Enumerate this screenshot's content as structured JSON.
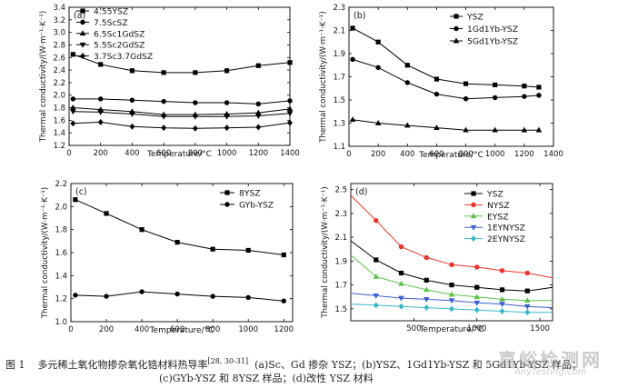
{
  "chart_data": [
    {
      "id": "a",
      "type": "line",
      "panel_label": "(a)",
      "xlabel": "Temperature/°C",
      "ylabel": "Thermal conductivity/(W·m⁻¹·K⁻¹)",
      "xlim": [
        0,
        1400
      ],
      "ylim": [
        1.2,
        3.4
      ],
      "xticks": [
        0,
        200,
        400,
        600,
        800,
        1000,
        1200,
        1400
      ],
      "yticks": [
        1.2,
        1.4,
        1.6,
        1.8,
        2.0,
        2.2,
        2.4,
        2.6,
        2.8,
        3.0,
        3.2,
        3.4
      ],
      "legend_position": "top-left",
      "series": [
        {
          "name": "4.55YSZ",
          "marker": "square",
          "x": [
            25,
            200,
            400,
            600,
            800,
            1000,
            1200,
            1400
          ],
          "y": [
            2.65,
            2.49,
            2.39,
            2.36,
            2.36,
            2.39,
            2.47,
            2.52
          ]
        },
        {
          "name": "7.5ScSZ",
          "marker": "circle",
          "x": [
            25,
            200,
            400,
            600,
            800,
            1000,
            1200,
            1400
          ],
          "y": [
            1.94,
            1.94,
            1.92,
            1.9,
            1.88,
            1.88,
            1.86,
            1.91
          ]
        },
        {
          "name": "6.5Sc1GdSZ",
          "marker": "triangle-up",
          "x": [
            25,
            200,
            400,
            600,
            800,
            1000,
            1200,
            1400
          ],
          "y": [
            1.8,
            1.77,
            1.74,
            1.69,
            1.69,
            1.7,
            1.72,
            1.78
          ]
        },
        {
          "name": "5.5Sc2GdSZ",
          "marker": "triangle-down",
          "x": [
            25,
            200,
            400,
            600,
            800,
            1000,
            1200,
            1400
          ],
          "y": [
            1.74,
            1.73,
            1.7,
            1.66,
            1.66,
            1.66,
            1.67,
            1.71
          ]
        },
        {
          "name": "3.7Sc3.7GdSZ",
          "marker": "diamond",
          "x": [
            25,
            200,
            400,
            600,
            800,
            1000,
            1200,
            1400
          ],
          "y": [
            1.55,
            1.57,
            1.5,
            1.48,
            1.47,
            1.48,
            1.49,
            1.56
          ]
        }
      ]
    },
    {
      "id": "b",
      "type": "line",
      "panel_label": "(b)",
      "xlabel": "Temperature/°C",
      "ylabel": "Thermal conductivity/(W·m⁻¹·K⁻¹)",
      "xlim": [
        0,
        1400
      ],
      "ylim": [
        1.1,
        2.3
      ],
      "xticks": [
        0,
        200,
        400,
        600,
        800,
        1000,
        1200,
        1400
      ],
      "yticks": [
        1.1,
        1.3,
        1.5,
        1.7,
        1.9,
        2.1,
        2.3
      ],
      "legend_position": "top-right",
      "series": [
        {
          "name": "YSZ",
          "marker": "square",
          "x": [
            25,
            200,
            400,
            600,
            800,
            1000,
            1200,
            1300
          ],
          "y": [
            2.12,
            2.0,
            1.8,
            1.68,
            1.64,
            1.63,
            1.62,
            1.61
          ]
        },
        {
          "name": "1Gd1Yb-YSZ",
          "marker": "circle",
          "x": [
            25,
            200,
            400,
            600,
            800,
            1000,
            1200,
            1300
          ],
          "y": [
            1.85,
            1.78,
            1.65,
            1.55,
            1.51,
            1.52,
            1.53,
            1.54
          ]
        },
        {
          "name": "5Gd1Yb-YSZ",
          "marker": "triangle-up",
          "x": [
            25,
            200,
            400,
            600,
            800,
            1000,
            1200,
            1300
          ],
          "y": [
            1.33,
            1.3,
            1.28,
            1.26,
            1.24,
            1.24,
            1.24,
            1.24
          ]
        }
      ]
    },
    {
      "id": "c",
      "type": "line",
      "panel_label": "(c)",
      "xlabel": "Temperature/°C",
      "ylabel": "Thermal conductivity/(W·m⁻¹·K⁻¹)",
      "xlim": [
        0,
        1250
      ],
      "ylim": [
        1.0,
        2.2
      ],
      "xticks": [
        0,
        200,
        400,
        600,
        800,
        1000,
        1200
      ],
      "yticks": [
        1.0,
        1.2,
        1.4,
        1.6,
        1.8,
        2.0,
        2.2
      ],
      "legend_position": "top-right",
      "series": [
        {
          "name": "8YSZ",
          "marker": "square",
          "x": [
            25,
            200,
            400,
            600,
            800,
            1000,
            1200
          ],
          "y": [
            2.06,
            1.94,
            1.8,
            1.69,
            1.63,
            1.62,
            1.58
          ]
        },
        {
          "name": "GYb-YSZ",
          "marker": "circle",
          "x": [
            25,
            200,
            400,
            600,
            800,
            1000,
            1200
          ],
          "y": [
            1.23,
            1.22,
            1.26,
            1.24,
            1.22,
            1.21,
            1.18
          ]
        }
      ]
    },
    {
      "id": "d",
      "type": "line",
      "panel_label": "(d)",
      "xlabel": "Temperature/°C",
      "ylabel": "Thermal conductivity/(W·m⁻¹·K⁻¹)",
      "xlim": [
        0,
        1600
      ],
      "ylim": [
        1.4,
        2.55
      ],
      "xticks": [
        500,
        1000,
        1500
      ],
      "yticks": [
        1.5,
        1.7,
        1.9,
        2.1,
        2.3,
        2.5
      ],
      "legend_position": "top-right",
      "series": [
        {
          "name": "YSZ",
          "color": "#000000",
          "marker": "square",
          "x": [
            0,
            200,
            400,
            600,
            800,
            1000,
            1200,
            1400,
            1600
          ],
          "y": [
            2.07,
            1.91,
            1.8,
            1.74,
            1.7,
            1.68,
            1.66,
            1.65,
            1.68
          ]
        },
        {
          "name": "NYSZ",
          "color": "#e8342a",
          "marker": "circle",
          "x": [
            0,
            200,
            400,
            600,
            800,
            1000,
            1200,
            1400,
            1600
          ],
          "y": [
            2.45,
            2.24,
            2.02,
            1.93,
            1.87,
            1.85,
            1.82,
            1.8,
            1.76
          ]
        },
        {
          "name": "EYSZ",
          "color": "#5cc24a",
          "marker": "triangle-up",
          "x": [
            0,
            200,
            400,
            600,
            800,
            1000,
            1200,
            1400,
            1600
          ],
          "y": [
            1.95,
            1.77,
            1.71,
            1.66,
            1.62,
            1.6,
            1.58,
            1.57,
            1.57
          ]
        },
        {
          "name": "1EYNYSZ",
          "color": "#3a5fd0",
          "marker": "triangle-down",
          "x": [
            0,
            200,
            400,
            600,
            800,
            1000,
            1200,
            1400,
            1600
          ],
          "y": [
            1.63,
            1.61,
            1.59,
            1.58,
            1.57,
            1.55,
            1.54,
            1.52,
            1.51
          ]
        },
        {
          "name": "2EYNYSZ",
          "color": "#35b8c8",
          "marker": "diamond",
          "x": [
            0,
            200,
            400,
            600,
            800,
            1000,
            1200,
            1400,
            1600
          ],
          "y": [
            1.54,
            1.53,
            1.52,
            1.51,
            1.5,
            1.49,
            1.48,
            1.47,
            1.47
          ]
        }
      ]
    }
  ],
  "caption": {
    "figure_no": "图 1",
    "title": "多元稀土氧化物掺杂氧化锆材料热导率",
    "refs": "[28, 30-31]",
    "line1_rest": "  (a)Sc、Gd 掺杂 YSZ；(b)YSZ、1Gd1Yb-YSZ 和 5Gd1Yb-YSZ 样品；",
    "line2": "(c)GYb-YSZ 和 8YSZ 样品；(d)改性 YSZ 材料"
  },
  "watermark": {
    "main": "嘉峪检测网",
    "sub": "AnyTesting.com"
  }
}
